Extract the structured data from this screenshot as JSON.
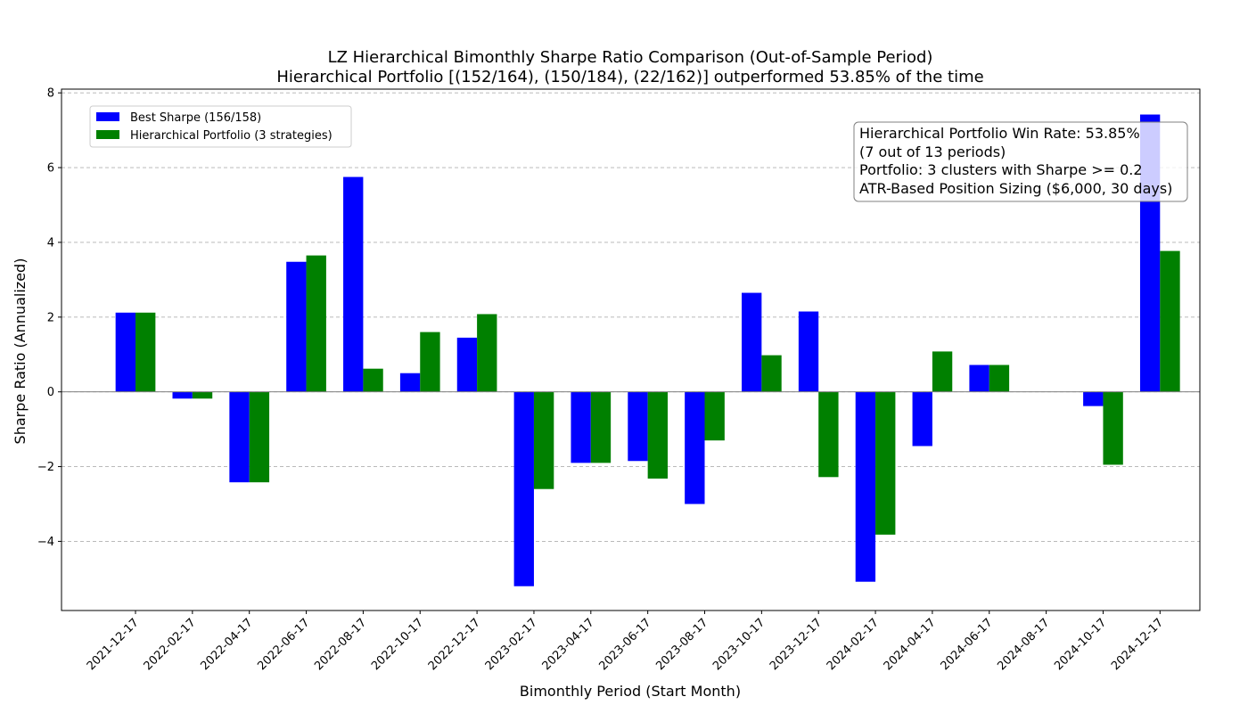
{
  "chart_data": {
    "type": "bar",
    "title": "LZ Hierarchical Bimonthly Sharpe Ratio Comparison (Out-of-Sample Period)",
    "subtitle": "Hierarchical Portfolio [(152/164), (150/184), (22/162)] outperformed 53.85% of the time",
    "xlabel": "Bimonthly Period (Start Month)",
    "ylabel": "Sharpe Ratio (Annualized)",
    "ylim": [
      -5.85,
      8.1
    ],
    "yticks": [
      -4,
      -2,
      0,
      2,
      4,
      6,
      8
    ],
    "ytick_labels": [
      "−4",
      "−2",
      "0",
      "2",
      "4",
      "6",
      "8"
    ],
    "grid": "y-dashed",
    "legend_position": "top-left",
    "categories": [
      "2021-12-17",
      "2022-02-17",
      "2022-04-17",
      "2022-06-17",
      "2022-08-17",
      "2022-10-17",
      "2022-12-17",
      "2023-02-17",
      "2023-04-17",
      "2023-06-17",
      "2023-08-17",
      "2023-10-17",
      "2023-12-17",
      "2024-02-17",
      "2024-04-17",
      "2024-06-17",
      "2024-08-17",
      "2024-10-17",
      "2024-12-17"
    ],
    "series": [
      {
        "name": "Best Sharpe (156/158)",
        "color": "#0000ff",
        "values": [
          2.12,
          -0.18,
          -2.42,
          3.48,
          5.75,
          0.5,
          1.45,
          -5.2,
          -1.9,
          -1.85,
          -3.0,
          2.65,
          2.15,
          -5.08,
          -1.45,
          0.72,
          0.0,
          -0.38,
          7.42
        ]
      },
      {
        "name": "Hierarchical Portfolio (3 strategies)",
        "color": "#008000",
        "values": [
          2.12,
          -0.18,
          -2.42,
          3.65,
          0.62,
          1.6,
          2.08,
          -2.6,
          -1.9,
          -2.32,
          -1.3,
          0.98,
          -2.28,
          -3.82,
          1.08,
          0.72,
          0.0,
          -1.95,
          3.77
        ]
      }
    ],
    "annotation": {
      "lines": [
        "Hierarchical Portfolio Win Rate: 53.85%",
        "(7 out of 13 periods)",
        "Portfolio: 3 clusters with Sharpe >= 0.2",
        "ATR-Based Position Sizing ($6,000, 30 days)"
      ]
    }
  }
}
